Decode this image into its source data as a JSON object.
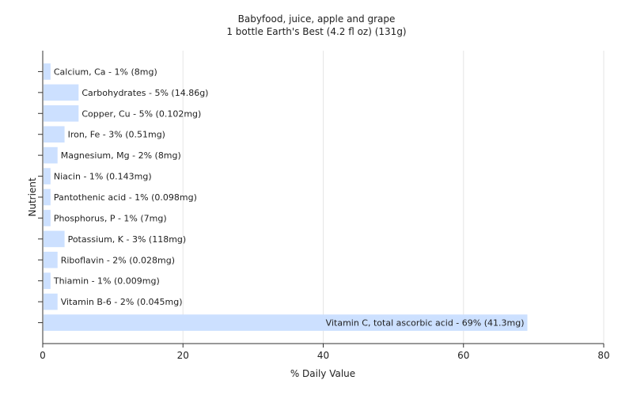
{
  "chart_data": {
    "type": "bar",
    "orientation": "horizontal",
    "title": "Babyfood, juice, apple and grape",
    "subtitle": "1 bottle Earth's Best (4.2 fl oz) (131g)",
    "xlabel": "% Daily Value",
    "ylabel": "Nutrient",
    "xlim": [
      0,
      80
    ],
    "xticks": [
      0,
      20,
      40,
      60,
      80
    ],
    "grid": true,
    "bar_color": "#cce0ff",
    "bars": [
      {
        "label": "Calcium, Ca - 1% (8mg)",
        "value": 1
      },
      {
        "label": "Carbohydrates - 5% (14.86g)",
        "value": 5
      },
      {
        "label": "Copper, Cu - 5% (0.102mg)",
        "value": 5
      },
      {
        "label": "Iron, Fe - 3% (0.51mg)",
        "value": 3
      },
      {
        "label": "Magnesium, Mg - 2% (8mg)",
        "value": 2
      },
      {
        "label": "Niacin - 1% (0.143mg)",
        "value": 1
      },
      {
        "label": "Pantothenic acid - 1% (0.098mg)",
        "value": 1
      },
      {
        "label": "Phosphorus, P - 1% (7mg)",
        "value": 1
      },
      {
        "label": "Potassium, K - 3% (118mg)",
        "value": 3
      },
      {
        "label": "Riboflavin - 2% (0.028mg)",
        "value": 2
      },
      {
        "label": "Thiamin - 1% (0.009mg)",
        "value": 1
      },
      {
        "label": "Vitamin B-6 - 2% (0.045mg)",
        "value": 2
      },
      {
        "label": "Vitamin C, total ascorbic acid - 69% (41.3mg)",
        "value": 69
      }
    ]
  }
}
